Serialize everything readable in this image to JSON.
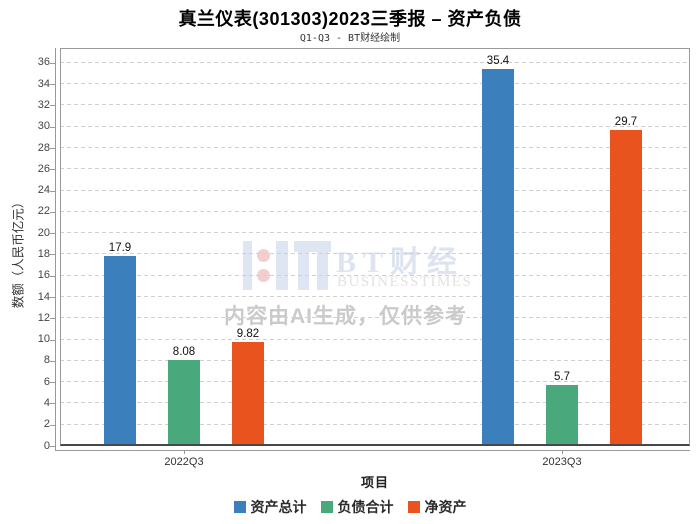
{
  "chart_data": {
    "type": "bar",
    "title": "真兰仪表(301303)2023三季报 – 资产负债",
    "subtitle": "Q1-Q3 - BT财经绘制",
    "xlabel": "项目",
    "ylabel": "数额（人民币亿元）",
    "categories": [
      "2022Q3",
      "2023Q3"
    ],
    "series": [
      {
        "name": "资产总计",
        "color": "#3b80bc",
        "values": [
          17.9,
          35.4
        ]
      },
      {
        "name": "负债合计",
        "color": "#4aa97c",
        "values": [
          8.08,
          5.7
        ]
      },
      {
        "name": "净资产",
        "color": "#e9531e",
        "values": [
          9.82,
          29.7
        ]
      }
    ],
    "ylim": [
      0,
      37.4
    ],
    "ytick_min": 0,
    "ytick_max": 36,
    "ytick_step": 2,
    "grid": "horizontal-dashed",
    "legend_position": "bottom"
  },
  "watermark": {
    "brand_cn": "BT财经",
    "brand_en": "BUSINESSTIMES",
    "ai_notice": "内容由AI生成，仅供参考"
  },
  "colors": {
    "grid": "#d0d0d0",
    "axis": "#999999",
    "tick_text": "#444444"
  }
}
